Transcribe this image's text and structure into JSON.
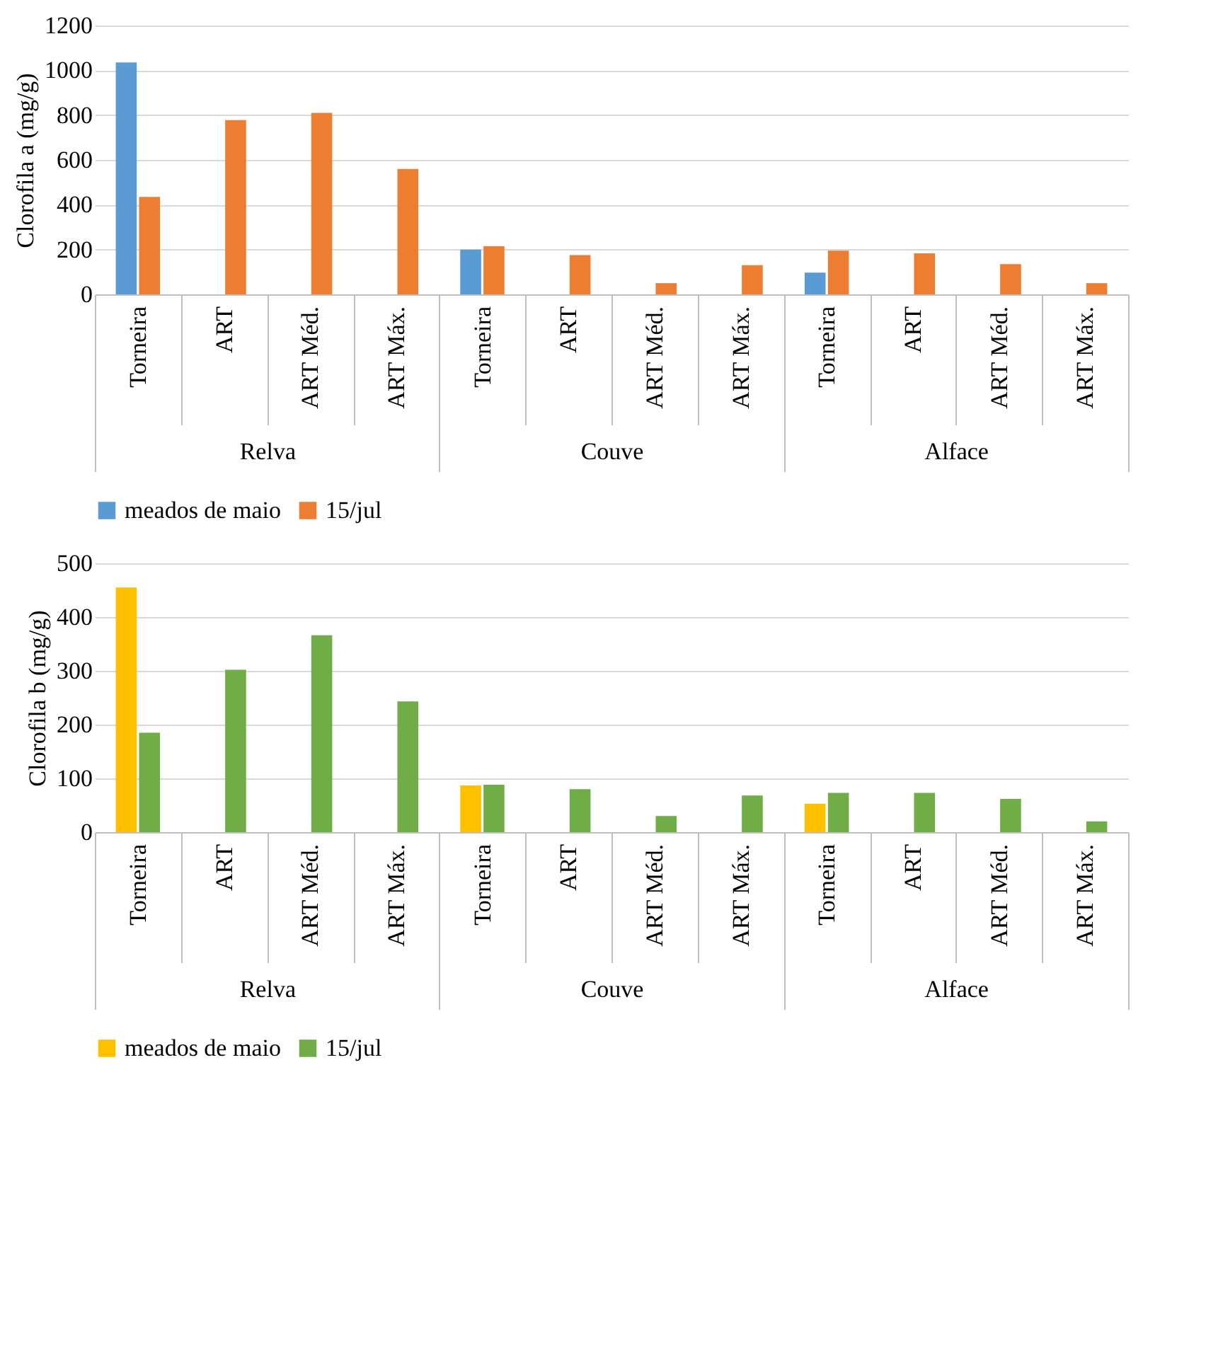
{
  "chart_data": [
    {
      "type": "bar",
      "ylabel": "Clorofila a (mg/g)",
      "categories": [
        "Torneira",
        "ART",
        "ART Méd.",
        "ART Máx.",
        "Torneira",
        "ART",
        "ART Méd.",
        "ART Máx.",
        "Torneira",
        "ART",
        "ART Méd.",
        "ART Máx."
      ],
      "annotations": [
        "Relva",
        "Couve",
        "Alface"
      ],
      "ylim": [
        0,
        1200
      ],
      "yticks": [
        0,
        200,
        400,
        600,
        800,
        1000,
        1200
      ],
      "grid": "y",
      "legend": "bottom",
      "series": [
        {
          "name": "meados de maio",
          "color": "#5b9bd5",
          "values": [
            1035,
            null,
            null,
            null,
            200,
            null,
            null,
            null,
            97,
            null,
            null,
            null
          ]
        },
        {
          "name": "15/jul",
          "color": "#ed7d31",
          "values": [
            435,
            778,
            810,
            560,
            215,
            175,
            50,
            130,
            195,
            183,
            135,
            50
          ]
        }
      ]
    },
    {
      "type": "bar",
      "ylabel": "Clorofila b (mg/g)",
      "categories": [
        "Torneira",
        "ART",
        "ART Méd.",
        "ART Máx.",
        "Torneira",
        "ART",
        "ART Méd.",
        "ART Máx.",
        "Torneira",
        "ART",
        "ART Méd.",
        "ART Máx."
      ],
      "annotations": [
        "Relva",
        "Couve",
        "Alface"
      ],
      "ylim": [
        0,
        500
      ],
      "yticks": [
        0,
        100,
        200,
        300,
        400,
        500
      ],
      "grid": "y",
      "legend": "bottom",
      "series": [
        {
          "name": "meados de maio",
          "color": "#ffc000",
          "values": [
            455,
            null,
            null,
            null,
            87,
            null,
            null,
            null,
            53,
            null,
            null,
            null
          ]
        },
        {
          "name": "15/jul",
          "color": "#70ad47",
          "values": [
            185,
            302,
            366,
            243,
            88,
            80,
            30,
            68,
            73,
            73,
            62,
            20
          ]
        }
      ]
    }
  ]
}
